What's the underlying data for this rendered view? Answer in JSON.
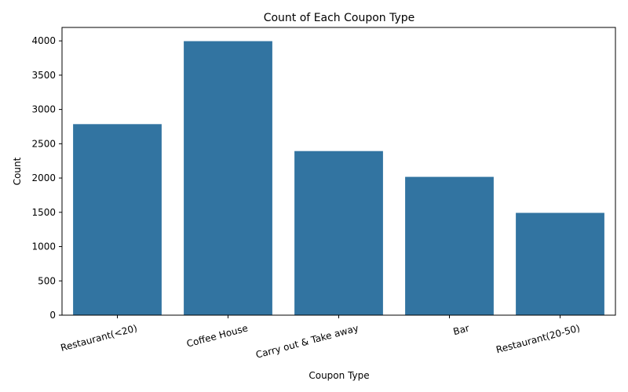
{
  "chart_data": {
    "type": "bar",
    "title": "Count of Each Coupon Type",
    "xlabel": "Coupon Type",
    "ylabel": "Count",
    "categories": [
      "Restaurant(<20)",
      "Coffee House",
      "Carry out & Take away",
      "Bar",
      "Restaurant(20-50)"
    ],
    "values": [
      2786,
      3996,
      2393,
      2017,
      1492
    ],
    "ylim": [
      0,
      4196
    ],
    "yticks": [
      0,
      500,
      1000,
      1500,
      2000,
      2500,
      3000,
      3500,
      4000
    ],
    "grid": false,
    "legend": "none",
    "bar_color": "#3274a1"
  }
}
